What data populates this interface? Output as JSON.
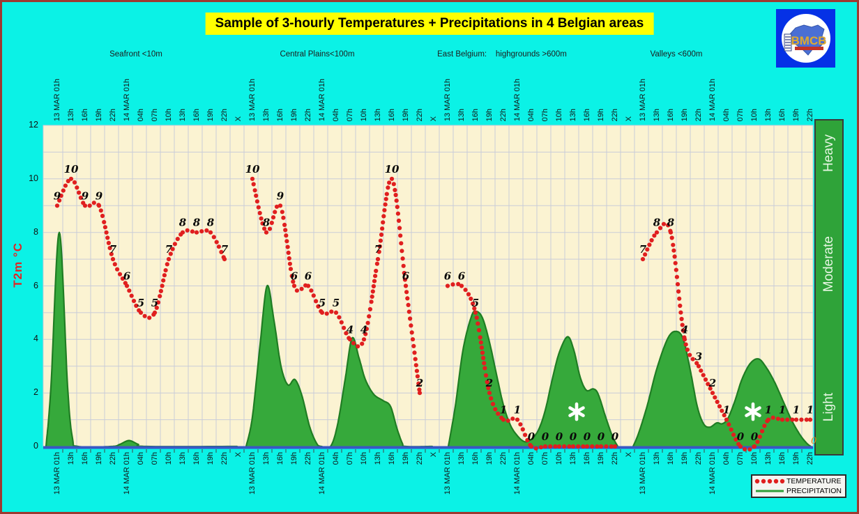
{
  "title": "Sample of 3-hourly Temperatures + Precipitations in 4 Belgian areas",
  "logo": {
    "text": "BMCB"
  },
  "y_axis": {
    "label": "T2m °C",
    "ticks": [
      0,
      2,
      4,
      6,
      8,
      10,
      12
    ],
    "min": 0,
    "max": 12
  },
  "x_axis": {
    "time_labels": [
      "13 MAR 01h",
      "13h",
      "16h",
      "19h",
      "22h",
      "14 MAR 01h",
      "04h",
      "07h",
      "10h",
      "13h",
      "16h",
      "19h",
      "22h"
    ],
    "separator_label": "X"
  },
  "right_bar": {
    "labels": [
      "Heavy",
      "Moderate",
      "Light"
    ],
    "zero_label": "0"
  },
  "legend": {
    "temperature": "TEMPERATURE",
    "precipitation": "PRECIPITATION"
  },
  "colors": {
    "background": "#0BF2E6",
    "frame_border": "#9E3A31",
    "title_background": "#FFFF00",
    "plot_background": "#FBF3D2",
    "grid": "#C9CCD8",
    "temperature_dot": "#E01F1F",
    "temperature_label": "#0A0A0A",
    "precipitation_fill": "#36A93B",
    "precipitation_stroke": "#1F7D23",
    "axis_line": "#3A57C4",
    "intensity_bar": "#2FA339",
    "snow_marker": "#FFFFFF",
    "y_label_color": "#E02525"
  },
  "chart_data": {
    "type": "line",
    "title": "Sample of 3-hourly Temperatures + Precipitations in 4 Belgian areas",
    "ylabel": "T2m °C",
    "ylim": [
      0,
      12
    ],
    "grid": true,
    "x_tick_labels_per_area": [
      "13 MAR 01h",
      "13h",
      "16h",
      "19h",
      "22h",
      "14 MAR 01h",
      "04h",
      "07h",
      "10h",
      "13h",
      "16h",
      "19h",
      "22h"
    ],
    "area_separator": "X",
    "precipitation_intensity_scale": [
      "Light",
      "Moderate",
      "Heavy"
    ],
    "legend_entries": [
      "TEMPERATURE",
      "PRECIPITATION"
    ],
    "areas": [
      {
        "name": "Seafront <10m",
        "temperature_3hourly": [
          9,
          10,
          9,
          9,
          7,
          6,
          5,
          5,
          7,
          8,
          8,
          8,
          7
        ],
        "precipitation_profile": [
          [
            -0.8,
            0
          ],
          [
            -0.45,
            2.2
          ],
          [
            0.15,
            8.0
          ],
          [
            0.75,
            2.2
          ],
          [
            1.1,
            0.3
          ],
          [
            1.5,
            0
          ],
          [
            3.9,
            0
          ],
          [
            4.5,
            0.08
          ],
          [
            5.15,
            0.22
          ],
          [
            5.8,
            0.08
          ],
          [
            6.4,
            0
          ],
          [
            12.9,
            0
          ]
        ],
        "snow_marker": null
      },
      {
        "name": "Central Plains<100m",
        "temperature_3hourly": [
          10,
          8,
          9,
          6,
          6,
          5,
          5,
          4,
          4,
          7,
          10,
          6,
          2
        ],
        "precipitation_profile": [
          [
            -0.45,
            0
          ],
          [
            0.0,
            1.1
          ],
          [
            0.55,
            3.8
          ],
          [
            1.05,
            6.0
          ],
          [
            1.55,
            4.7
          ],
          [
            2.05,
            3.0
          ],
          [
            2.55,
            2.3
          ],
          [
            3.05,
            2.5
          ],
          [
            3.55,
            1.9
          ],
          [
            4.1,
            0.75
          ],
          [
            4.6,
            0.12
          ],
          [
            4.95,
            0
          ],
          [
            5.6,
            0
          ],
          [
            6.1,
            0.8
          ],
          [
            6.65,
            2.5
          ],
          [
            7.15,
            4.05
          ],
          [
            7.65,
            3.3
          ],
          [
            8.1,
            2.5
          ],
          [
            8.7,
            1.95
          ],
          [
            9.35,
            1.72
          ],
          [
            9.9,
            1.5
          ],
          [
            10.35,
            0.7
          ],
          [
            10.75,
            0.12
          ],
          [
            11.0,
            0
          ],
          [
            12.9,
            0
          ]
        ],
        "snow_marker": null
      },
      {
        "name": "East Belgium:    highgrounds >600m",
        "temperature_3hourly": [
          6,
          6,
          5,
          2,
          1,
          1,
          0,
          0,
          0,
          0,
          0,
          0,
          0
        ],
        "precipitation_profile": [
          [
            0.05,
            0
          ],
          [
            0.55,
            1.5
          ],
          [
            1.1,
            3.6
          ],
          [
            1.7,
            4.85
          ],
          [
            2.05,
            5.05
          ],
          [
            2.5,
            4.8
          ],
          [
            3.0,
            3.9
          ],
          [
            3.5,
            2.7
          ],
          [
            4.0,
            1.55
          ],
          [
            4.5,
            0.8
          ],
          [
            5.0,
            0.4
          ],
          [
            5.5,
            0.18
          ],
          [
            5.95,
            0.25
          ],
          [
            6.5,
            0.6
          ],
          [
            7.0,
            1.35
          ],
          [
            7.5,
            2.5
          ],
          [
            8.0,
            3.5
          ],
          [
            8.6,
            4.1
          ],
          [
            9.05,
            3.6
          ],
          [
            9.5,
            2.6
          ],
          [
            9.95,
            2.1
          ],
          [
            10.45,
            2.15
          ],
          [
            10.8,
            1.95
          ],
          [
            11.3,
            1.15
          ],
          [
            11.8,
            0.4
          ],
          [
            12.2,
            0
          ]
        ],
        "snow_marker": {
          "t": 9.25,
          "v": 1.3
        }
      },
      {
        "name": "Valleys <600m",
        "temperature_3hourly": [
          7,
          8,
          8,
          4,
          3,
          2,
          1,
          0,
          0,
          1,
          1,
          1,
          1
        ],
        "precipitation_profile": [
          [
            -0.7,
            0
          ],
          [
            -0.3,
            0.5
          ],
          [
            0.3,
            1.5
          ],
          [
            1.0,
            2.9
          ],
          [
            1.8,
            4.05
          ],
          [
            2.4,
            4.3
          ],
          [
            2.9,
            4.0
          ],
          [
            3.4,
            2.85
          ],
          [
            3.9,
            1.5
          ],
          [
            4.35,
            0.85
          ],
          [
            4.8,
            0.72
          ],
          [
            5.3,
            0.88
          ],
          [
            5.7,
            0.85
          ],
          [
            6.1,
            1.05
          ],
          [
            6.6,
            1.7
          ],
          [
            7.1,
            2.5
          ],
          [
            7.7,
            3.1
          ],
          [
            8.3,
            3.27
          ],
          [
            8.85,
            2.95
          ],
          [
            9.45,
            2.4
          ],
          [
            10.05,
            1.7
          ],
          [
            10.65,
            1.0
          ],
          [
            11.25,
            0.45
          ],
          [
            11.75,
            0.12
          ],
          [
            12.05,
            0
          ]
        ],
        "snow_marker": {
          "t": 7.9,
          "v": 1.3
        }
      }
    ]
  }
}
